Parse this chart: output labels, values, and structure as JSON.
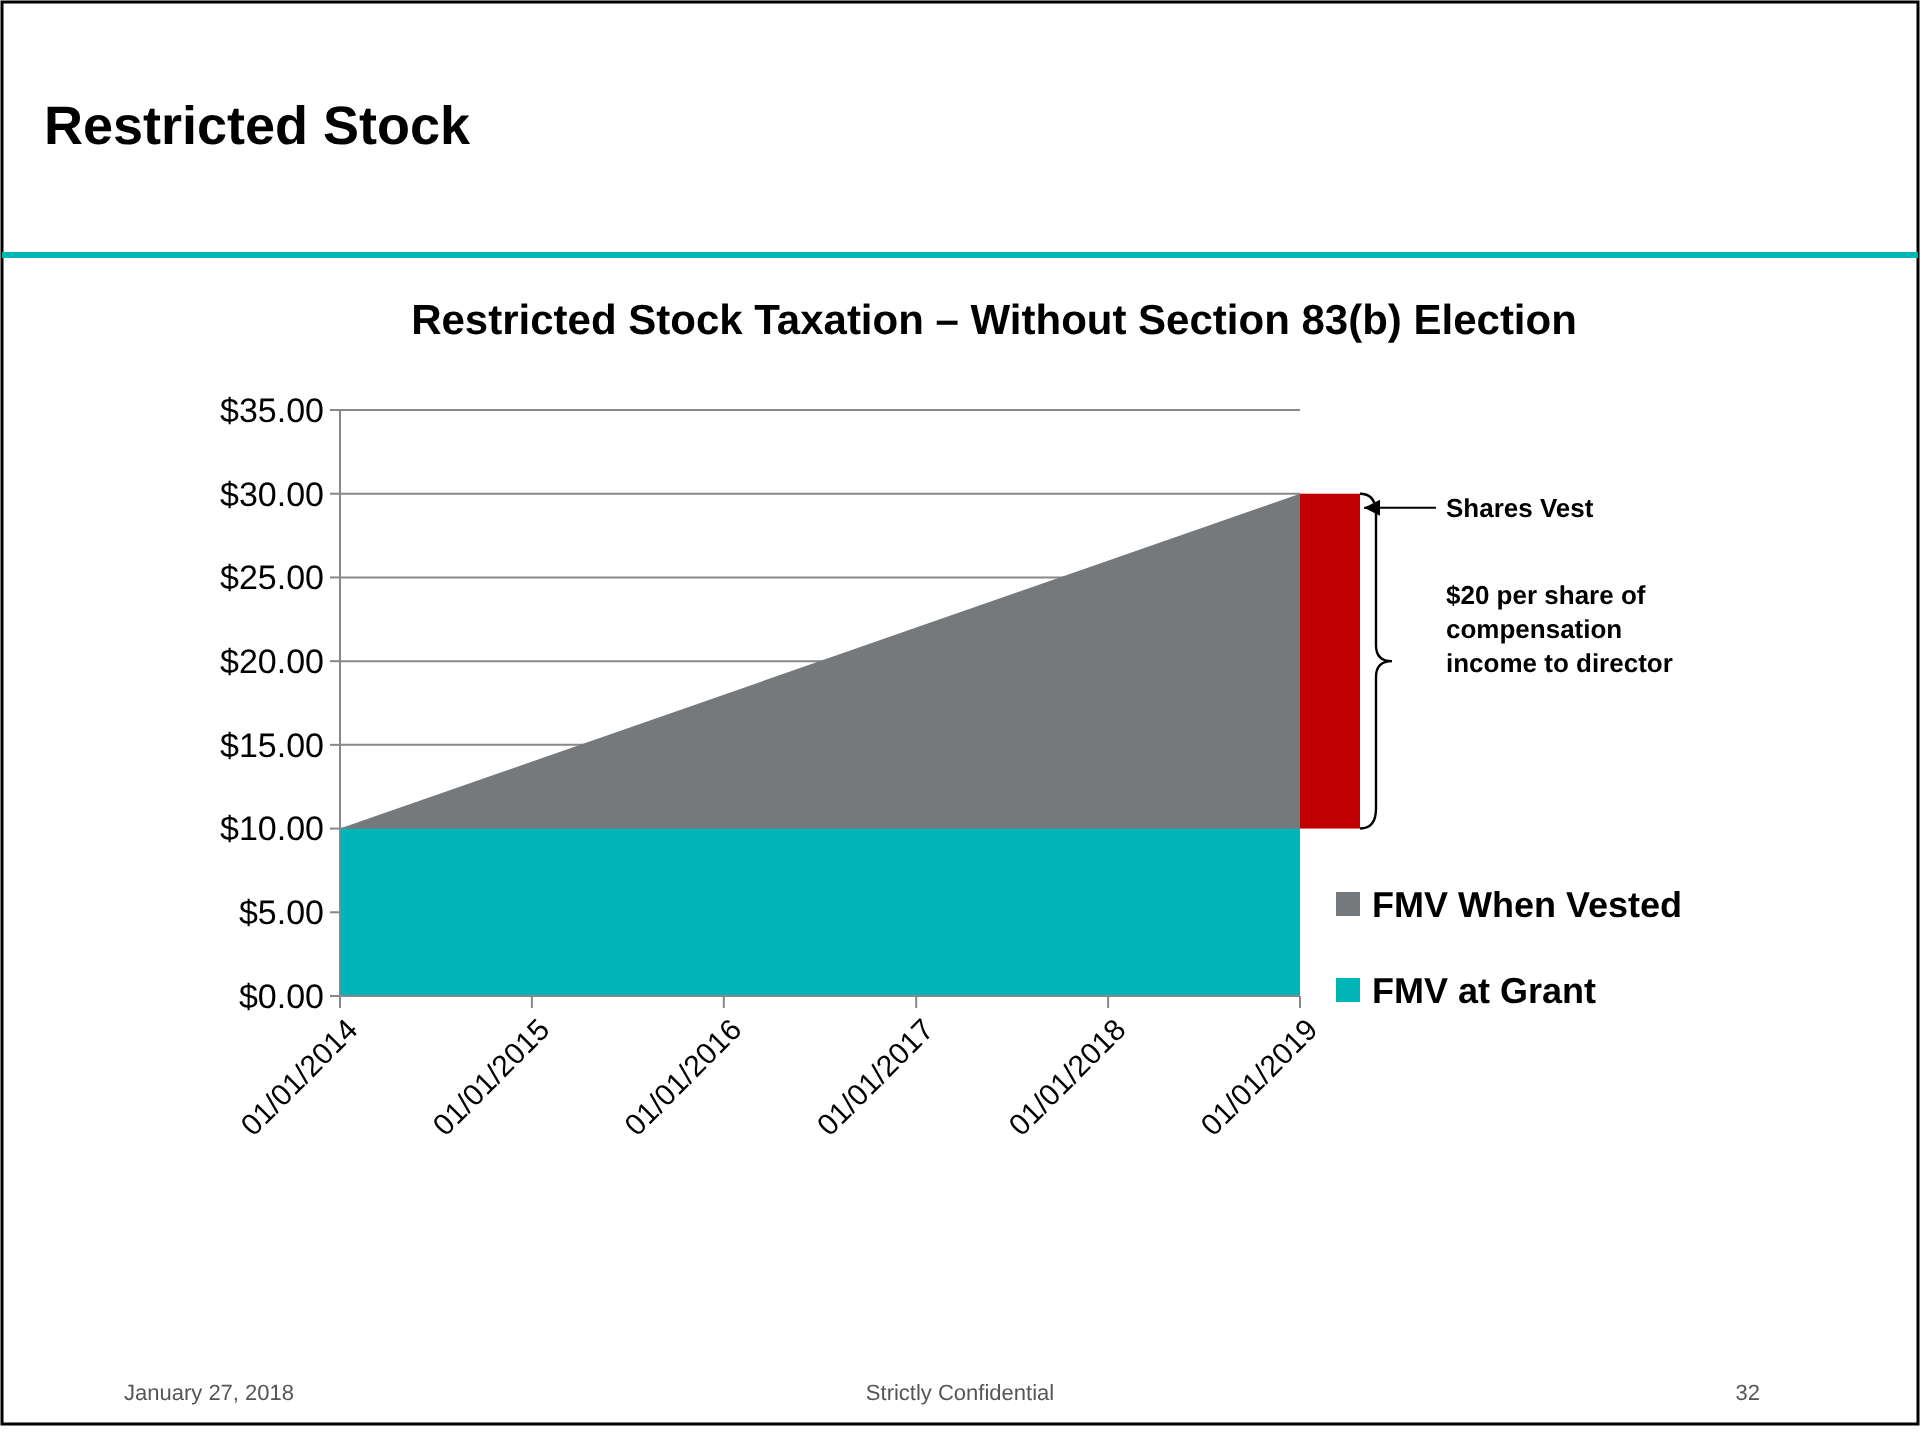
{
  "chart_data": {
    "type": "area",
    "stacked": true,
    "title": "Restricted Stock",
    "subtitle": "Restricted Stock Taxation – Without Section 83(b) Election",
    "x": [
      "2014-01-01",
      "2019-01-01"
    ],
    "xlim": [
      "2014-01-01",
      "2019-01-01"
    ],
    "xticks": [
      {
        "value": "2014-01-01",
        "label": "01/01/2014"
      },
      {
        "value": "2015-01-01",
        "label": "01/01/2015"
      },
      {
        "value": "2016-01-01",
        "label": "01/01/2016"
      },
      {
        "value": "2017-01-01",
        "label": "01/01/2017"
      },
      {
        "value": "2018-01-01",
        "label": "01/01/2018"
      },
      {
        "value": "2019-01-01",
        "label": "01/01/2019"
      }
    ],
    "ylim": [
      0,
      35
    ],
    "yticks": [
      {
        "value": 0,
        "label": "$0.00"
      },
      {
        "value": 5,
        "label": "$5.00"
      },
      {
        "value": 10,
        "label": "$10.00"
      },
      {
        "value": 15,
        "label": "$15.00"
      },
      {
        "value": 20,
        "label": "$20.00"
      },
      {
        "value": 25,
        "label": "$25.00"
      },
      {
        "value": 30,
        "label": "$30.00"
      },
      {
        "value": 35,
        "label": "$35.00"
      }
    ],
    "series": [
      {
        "name": "FMV at Grant",
        "color": "#00b5b8",
        "values": [
          10,
          10
        ]
      },
      {
        "name": "FMV When Vested",
        "color": "#76797b",
        "values": [
          0,
          20
        ]
      }
    ],
    "grid": "y",
    "legend": "right",
    "annotations": [
      "Shares Vest",
      "$20 per share of compensation income to director",
      "January 27, 2018",
      "Strictly Confidential",
      "32"
    ]
  }
}
